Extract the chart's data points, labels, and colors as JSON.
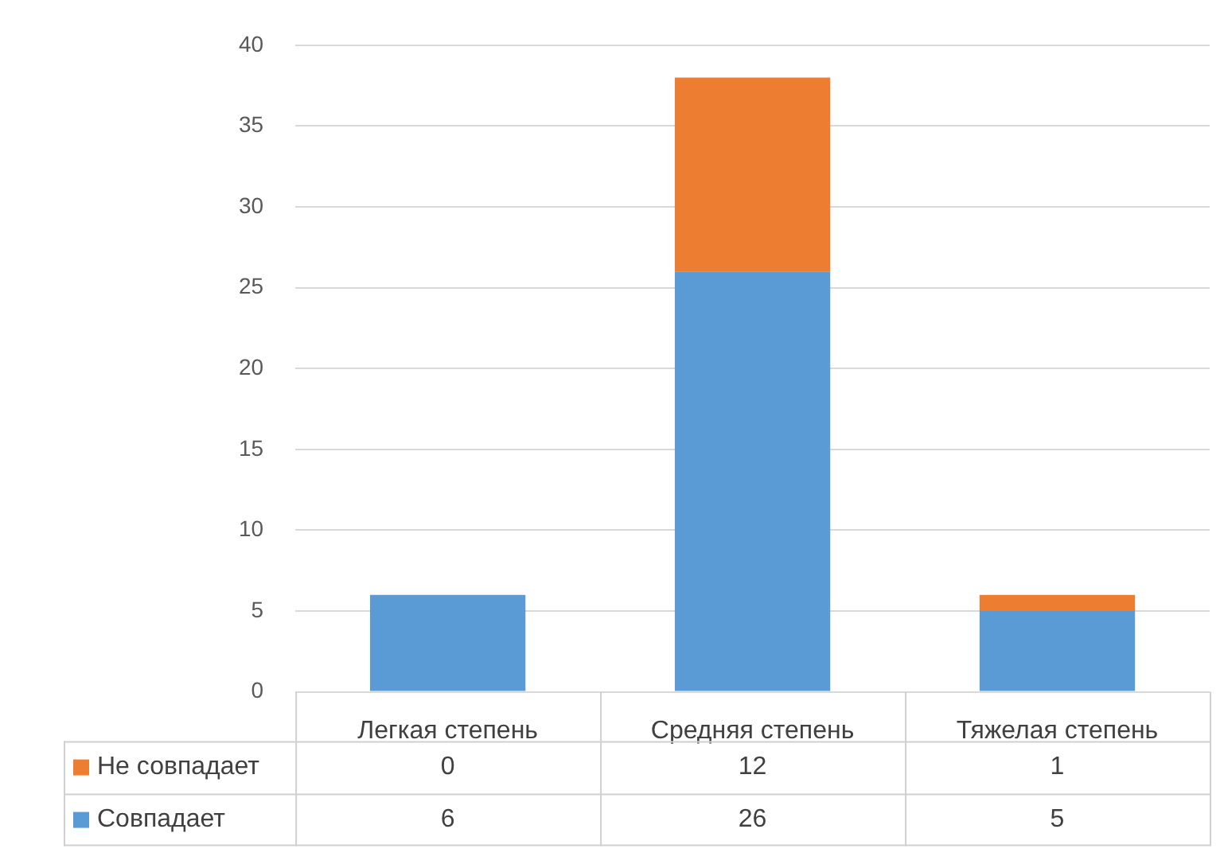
{
  "chart_data": {
    "type": "bar",
    "stacked": true,
    "categories": [
      "Легкая степень",
      "Средняя степень",
      "Тяжелая степень"
    ],
    "series": [
      {
        "name": "Совпадает",
        "color": "#5b9bd5",
        "values": [
          6,
          26,
          5
        ]
      },
      {
        "name": "Не совпадает",
        "color": "#ed7d31",
        "values": [
          0,
          12,
          1
        ]
      }
    ],
    "ylim": [
      0,
      40
    ],
    "yticks": [
      0,
      5,
      10,
      15,
      20,
      25,
      30,
      35,
      40
    ],
    "grid": "y",
    "legend": "bottom",
    "data_labels": true
  }
}
